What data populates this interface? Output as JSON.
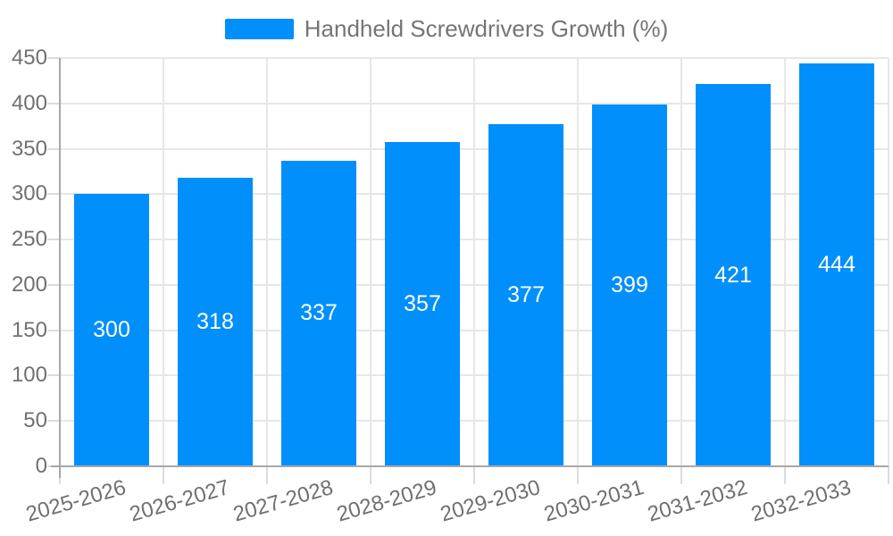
{
  "chart_data": {
    "type": "bar",
    "title": "Handheld Screwdrivers Growth (%)",
    "categories": [
      "2025-2026",
      "2026-2027",
      "2027-2028",
      "2028-2029",
      "2029-2030",
      "2030-2031",
      "2031-2032",
      "2032-2033"
    ],
    "values": [
      300,
      318,
      337,
      357,
      377,
      399,
      421,
      444
    ],
    "xlabel": "",
    "ylabel": "",
    "ylim": [
      0,
      450
    ],
    "ytick_step": 50,
    "grid": true,
    "legend_position": "top",
    "x_label_rotation_deg": -16,
    "colors": {
      "bar": "#008FFB",
      "bar_label": "#ffffff",
      "axis_text": "#707070",
      "legend_text": "#757575",
      "gridline": "#e7e7e7",
      "axis_line": "#a8a8a8"
    }
  }
}
